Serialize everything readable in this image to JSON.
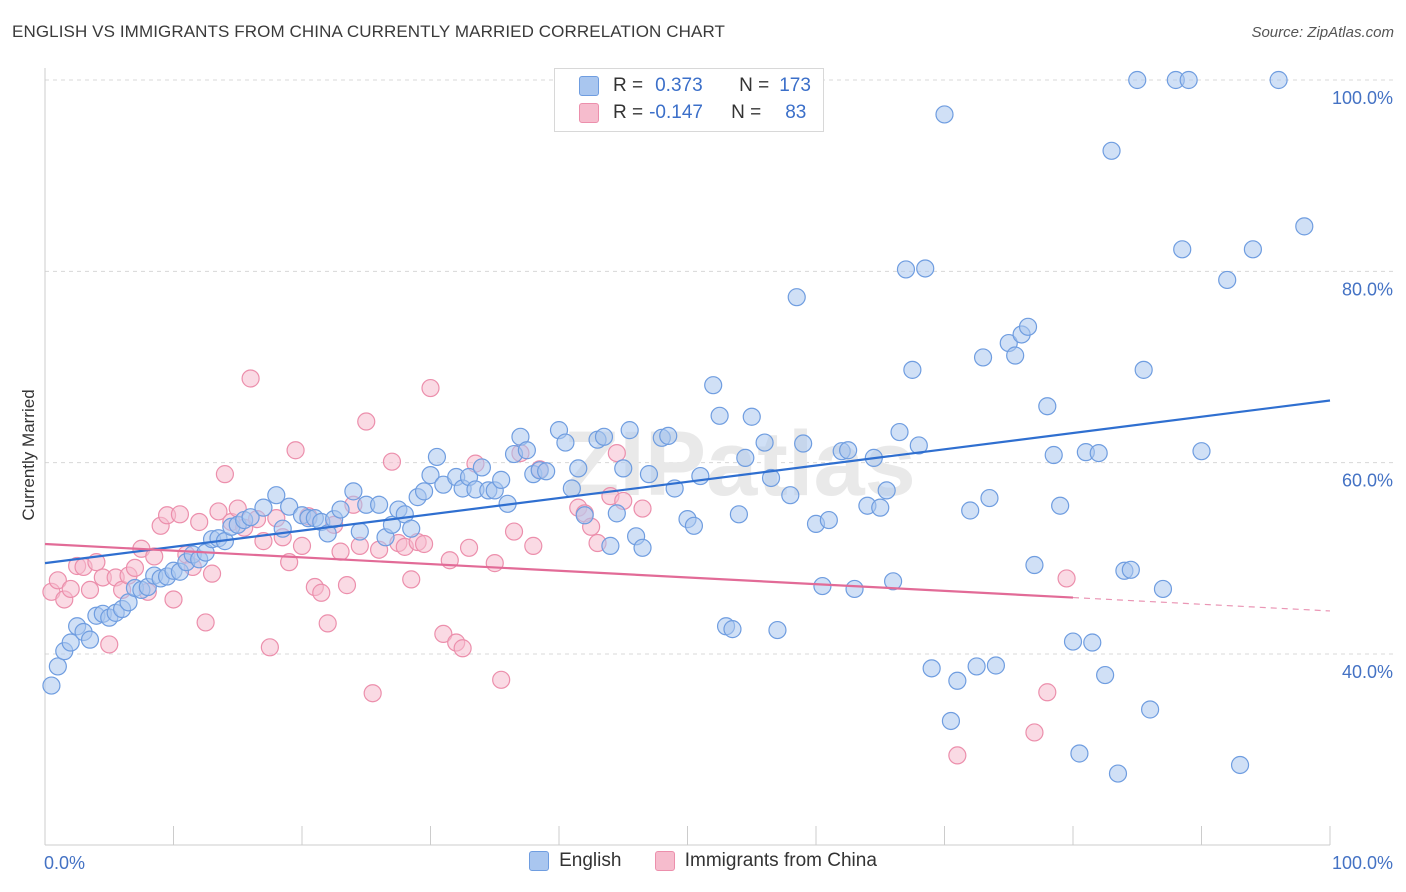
{
  "title": "ENGLISH VS IMMIGRANTS FROM CHINA CURRENTLY MARRIED CORRELATION CHART",
  "source": "Source: ZipAtlas.com",
  "watermark": "ZIPatlas",
  "colors": {
    "english_fill": "#a9c6ef",
    "english_stroke": "#6f9de0",
    "english_line": "#2f6fd0",
    "china_fill": "#f6bccd",
    "china_stroke": "#ec8fac",
    "china_line": "#e26b97",
    "tick_text": "#4472c4",
    "grid": "#d8d8d8"
  },
  "stats": {
    "english": {
      "r_label": "R =",
      "r_value": "0.373",
      "n_label": "N =",
      "n_value": "173"
    },
    "china": {
      "r_label": "R =",
      "r_value": "-0.147",
      "n_label": "N =",
      "n_value": "83"
    }
  },
  "legend": {
    "english": "English",
    "china": "Immigrants from China"
  },
  "chart_data": {
    "type": "scatter",
    "title": "ENGLISH VS IMMIGRANTS FROM CHINA CURRENTLY MARRIED CORRELATION CHART",
    "xlabel": "",
    "ylabel": "Currently Married",
    "xlim": [
      0,
      100
    ],
    "ylim": [
      22,
      102
    ],
    "x_tick_labels": [
      "0.0%",
      "100.0%"
    ],
    "y_ticks": [
      40,
      60,
      80,
      100
    ],
    "y_tick_labels": [
      "40.0%",
      "60.0%",
      "80.0%",
      "100.0%"
    ],
    "grid": true,
    "legend_position": "bottom-center",
    "series": [
      {
        "name": "English",
        "trend": {
          "x": [
            0,
            100
          ],
          "y": [
            49.5,
            66.5
          ],
          "solid_until": 100
        },
        "points": [
          [
            0.5,
            36.7
          ],
          [
            1,
            38.7
          ],
          [
            1.5,
            40.3
          ],
          [
            2,
            41.2
          ],
          [
            2.5,
            42.9
          ],
          [
            3,
            42.3
          ],
          [
            3.5,
            41.5
          ],
          [
            4,
            44
          ],
          [
            4.5,
            44.2
          ],
          [
            5,
            43.8
          ],
          [
            5.5,
            44.3
          ],
          [
            6,
            44.7
          ],
          [
            6.5,
            45.4
          ],
          [
            7,
            46.9
          ],
          [
            7.5,
            46.7
          ],
          [
            8,
            47
          ],
          [
            8.5,
            48.2
          ],
          [
            9,
            47.9
          ],
          [
            9.5,
            48.1
          ],
          [
            10,
            48.7
          ],
          [
            10.5,
            48.6
          ],
          [
            11,
            49.6
          ],
          [
            11.5,
            50.4
          ],
          [
            12,
            49.9
          ],
          [
            12.5,
            50.6
          ],
          [
            13,
            52
          ],
          [
            13.5,
            52.1
          ],
          [
            14,
            51.8
          ],
          [
            14.5,
            53.3
          ],
          [
            15,
            53.5
          ],
          [
            15.5,
            54
          ],
          [
            16,
            54.3
          ],
          [
            17,
            55.3
          ],
          [
            18,
            56.6
          ],
          [
            18.5,
            53.1
          ],
          [
            19,
            55.4
          ],
          [
            20,
            54.5
          ],
          [
            20.5,
            54.2
          ],
          [
            21,
            54.2
          ],
          [
            21.5,
            53.8
          ],
          [
            22,
            52.6
          ],
          [
            22.5,
            54.1
          ],
          [
            23,
            55.1
          ],
          [
            24,
            57
          ],
          [
            24.5,
            52.8
          ],
          [
            25,
            55.6
          ],
          [
            26,
            55.6
          ],
          [
            26.5,
            52.2
          ],
          [
            27,
            53.5
          ],
          [
            27.5,
            55.1
          ],
          [
            28,
            54.6
          ],
          [
            28.5,
            53.1
          ],
          [
            29,
            56.4
          ],
          [
            29.5,
            57
          ],
          [
            30,
            58.7
          ],
          [
            30.5,
            60.6
          ],
          [
            31,
            57.7
          ],
          [
            32,
            58.5
          ],
          [
            32.5,
            57.3
          ],
          [
            33,
            58.5
          ],
          [
            33.5,
            57.2
          ],
          [
            34,
            59.5
          ],
          [
            34.5,
            57.1
          ],
          [
            35,
            57.1
          ],
          [
            35.5,
            58.2
          ],
          [
            36,
            55.7
          ],
          [
            36.5,
            60.9
          ],
          [
            37,
            62.7
          ],
          [
            37.5,
            61.3
          ],
          [
            38,
            58.8
          ],
          [
            38.5,
            59.2
          ],
          [
            39,
            59.1
          ],
          [
            40,
            63.4
          ],
          [
            40.5,
            62.1
          ],
          [
            41,
            57.3
          ],
          [
            41.5,
            59.4
          ],
          [
            42,
            54.5
          ],
          [
            43,
            62.4
          ],
          [
            43.5,
            62.7
          ],
          [
            44,
            51.3
          ],
          [
            44.5,
            54.7
          ],
          [
            45,
            59.4
          ],
          [
            45.5,
            63.4
          ],
          [
            46,
            52.3
          ],
          [
            46.5,
            51.1
          ],
          [
            47,
            58.8
          ],
          [
            48,
            62.6
          ],
          [
            48.5,
            62.8
          ],
          [
            49,
            57.3
          ],
          [
            50,
            54.1
          ],
          [
            50.5,
            53.4
          ],
          [
            51,
            58.6
          ],
          [
            52,
            68.1
          ],
          [
            52.5,
            64.9
          ],
          [
            53,
            42.9
          ],
          [
            53.5,
            42.6
          ],
          [
            54,
            54.6
          ],
          [
            54.5,
            60.5
          ],
          [
            55,
            64.8
          ],
          [
            56,
            62.1
          ],
          [
            56.5,
            58.4
          ],
          [
            57,
            42.5
          ],
          [
            58,
            56.6
          ],
          [
            58.5,
            77.3
          ],
          [
            59,
            62
          ],
          [
            60,
            53.6
          ],
          [
            60.5,
            47.1
          ],
          [
            61,
            54
          ],
          [
            62,
            61.2
          ],
          [
            62.5,
            61.3
          ],
          [
            63,
            46.8
          ],
          [
            64,
            55.5
          ],
          [
            64.5,
            60.5
          ],
          [
            65,
            55.3
          ],
          [
            65.5,
            57.1
          ],
          [
            66,
            47.6
          ],
          [
            66.5,
            63.2
          ],
          [
            67,
            80.2
          ],
          [
            67.5,
            69.7
          ],
          [
            68,
            61.8
          ],
          [
            68.5,
            80.3
          ],
          [
            69,
            38.5
          ],
          [
            70,
            96.4
          ],
          [
            70.5,
            33
          ],
          [
            71,
            37.2
          ],
          [
            72,
            55
          ],
          [
            72.5,
            38.7
          ],
          [
            73,
            71
          ],
          [
            73.5,
            56.3
          ],
          [
            74,
            38.8
          ],
          [
            75,
            72.5
          ],
          [
            75.5,
            71.2
          ],
          [
            76,
            73.4
          ],
          [
            76.5,
            74.2
          ],
          [
            77,
            49.3
          ],
          [
            78,
            65.9
          ],
          [
            78.5,
            60.8
          ],
          [
            79,
            55.5
          ],
          [
            80,
            41.3
          ],
          [
            80.5,
            29.6
          ],
          [
            81,
            61.1
          ],
          [
            81.5,
            41.2
          ],
          [
            82,
            61
          ],
          [
            82.5,
            37.8
          ],
          [
            83,
            92.6
          ],
          [
            83.5,
            27.5
          ],
          [
            84,
            48.7
          ],
          [
            84.5,
            48.8
          ],
          [
            85,
            100
          ],
          [
            85.5,
            69.7
          ],
          [
            86,
            34.2
          ],
          [
            87,
            46.8
          ],
          [
            88,
            100
          ],
          [
            88.5,
            82.3
          ],
          [
            89,
            100
          ],
          [
            90,
            61.2
          ],
          [
            92,
            79.1
          ],
          [
            93,
            28.4
          ],
          [
            94,
            82.3
          ],
          [
            96,
            100
          ],
          [
            98,
            84.7
          ]
        ]
      },
      {
        "name": "Immigrants from China",
        "trend": {
          "x": [
            0,
            100
          ],
          "y": [
            51.5,
            44.5
          ],
          "solid_until": 80
        },
        "points": [
          [
            0.5,
            46.5
          ],
          [
            1,
            47.7
          ],
          [
            1.5,
            45.7
          ],
          [
            2,
            46.8
          ],
          [
            2.5,
            49.2
          ],
          [
            3,
            49.1
          ],
          [
            3.5,
            46.7
          ],
          [
            4,
            49.6
          ],
          [
            4.5,
            48
          ],
          [
            5,
            41
          ],
          [
            5.5,
            48
          ],
          [
            6,
            46.7
          ],
          [
            6.5,
            48.2
          ],
          [
            7,
            49
          ],
          [
            7.5,
            51
          ],
          [
            8,
            46.5
          ],
          [
            8.5,
            50.2
          ],
          [
            9,
            53.4
          ],
          [
            9.5,
            54.5
          ],
          [
            10,
            45.7
          ],
          [
            10.5,
            54.6
          ],
          [
            11,
            50.4
          ],
          [
            11.5,
            49.1
          ],
          [
            12,
            53.8
          ],
          [
            12.5,
            43.3
          ],
          [
            13,
            48.4
          ],
          [
            13.5,
            54.9
          ],
          [
            14,
            58.8
          ],
          [
            14.5,
            53.8
          ],
          [
            15,
            55.2
          ],
          [
            15.5,
            53.2
          ],
          [
            16,
            68.8
          ],
          [
            16.5,
            54.1
          ],
          [
            17,
            51.8
          ],
          [
            17.5,
            40.7
          ],
          [
            18,
            54.2
          ],
          [
            18.5,
            52.2
          ],
          [
            19,
            49.6
          ],
          [
            19.5,
            61.3
          ],
          [
            20,
            51.3
          ],
          [
            20.5,
            54.4
          ],
          [
            21,
            47
          ],
          [
            21.5,
            46.4
          ],
          [
            22,
            43.2
          ],
          [
            22.5,
            53.5
          ],
          [
            23,
            50.7
          ],
          [
            23.5,
            47.2
          ],
          [
            24,
            55.6
          ],
          [
            24.5,
            51.3
          ],
          [
            25,
            64.3
          ],
          [
            25.5,
            35.9
          ],
          [
            26,
            50.9
          ],
          [
            27,
            60.1
          ],
          [
            27.5,
            51.6
          ],
          [
            28,
            51.2
          ],
          [
            28.5,
            47.8
          ],
          [
            29,
            51.7
          ],
          [
            29.5,
            51.5
          ],
          [
            30,
            67.8
          ],
          [
            31,
            42.1
          ],
          [
            31.5,
            49.8
          ],
          [
            32,
            41.2
          ],
          [
            32.5,
            40.6
          ],
          [
            33,
            51.1
          ],
          [
            33.5,
            59.9
          ],
          [
            35,
            49.5
          ],
          [
            35.5,
            37.3
          ],
          [
            36.5,
            52.8
          ],
          [
            37,
            61
          ],
          [
            38,
            51.3
          ],
          [
            38.5,
            59.3
          ],
          [
            41.5,
            55.3
          ],
          [
            42,
            54.7
          ],
          [
            42.5,
            53.3
          ],
          [
            43,
            51.6
          ],
          [
            44,
            56.5
          ],
          [
            44.5,
            61
          ],
          [
            45,
            56
          ],
          [
            46.5,
            55.2
          ],
          [
            71,
            29.4
          ],
          [
            77,
            31.8
          ],
          [
            78,
            36
          ],
          [
            79.5,
            47.9
          ]
        ]
      }
    ]
  }
}
